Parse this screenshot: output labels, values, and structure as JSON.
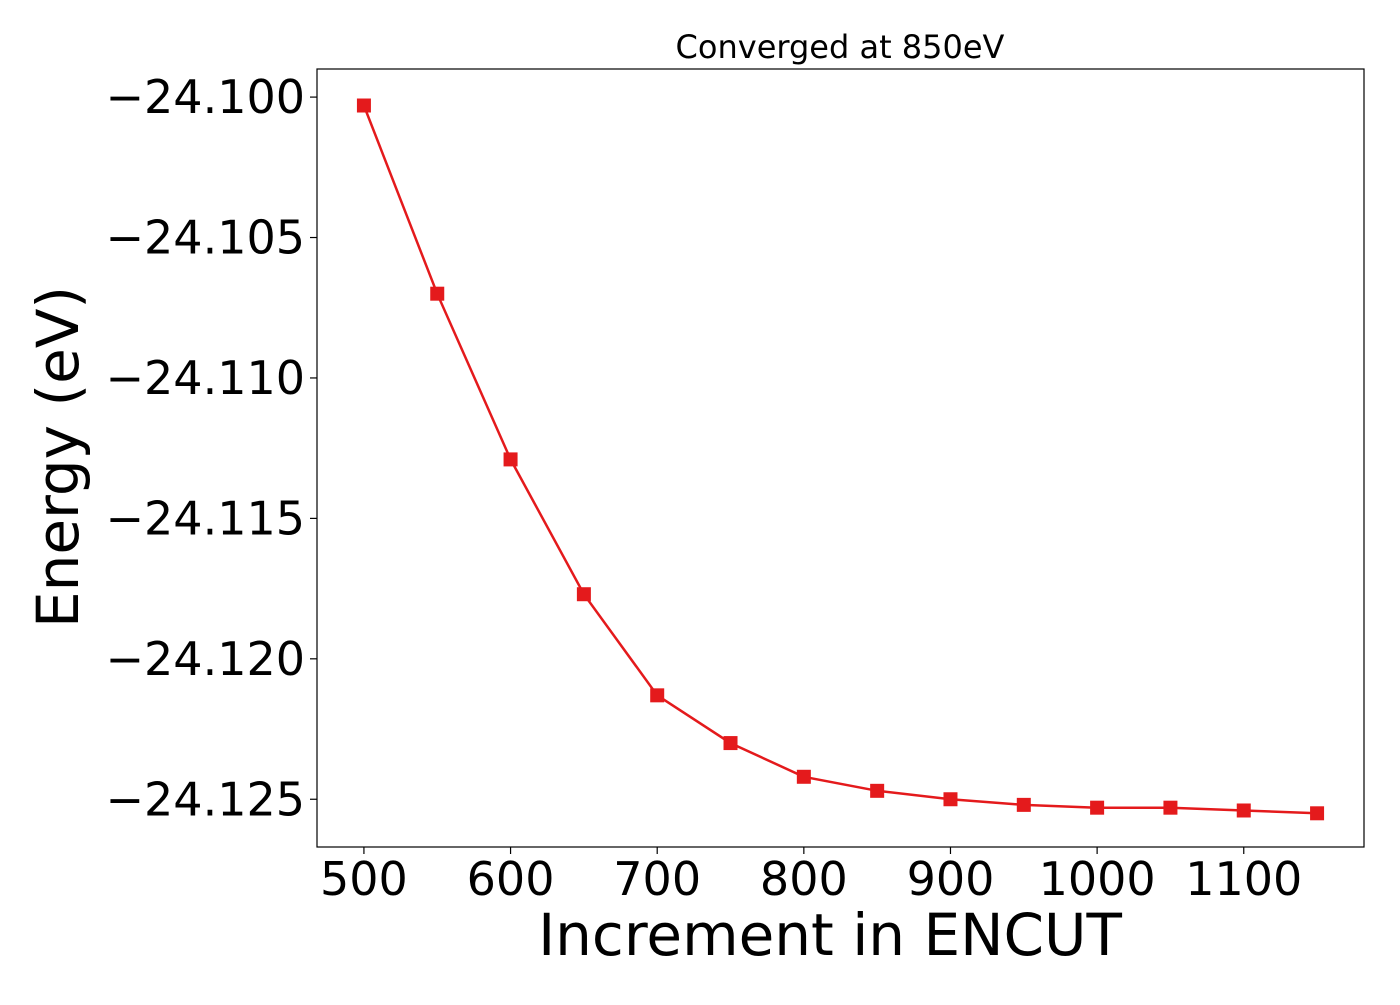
{
  "chart_data": {
    "type": "line",
    "title": "Converged at 850eV",
    "xlabel": "Increment in ENCUT",
    "ylabel": "Energy (eV)",
    "x": [
      500,
      550,
      600,
      650,
      700,
      750,
      800,
      850,
      900,
      950,
      1000,
      1050,
      1100,
      1150
    ],
    "series": [
      {
        "values": [
          -24.1003,
          -24.107,
          -24.1129,
          -24.1177,
          -24.1213,
          -24.123,
          -24.1242,
          -24.1247,
          -24.125,
          -24.1252,
          -24.1253,
          -24.1253,
          -24.1254,
          -24.1255
        ],
        "color": "#e41a1c",
        "marker": "square"
      }
    ],
    "xlim": [
      468,
      1182
    ],
    "ylim": [
      -24.1267,
      -24.099
    ],
    "xticks": [
      500,
      600,
      700,
      800,
      900,
      1000,
      1100
    ],
    "xtick_labels": [
      "500",
      "600",
      "700",
      "800",
      "900",
      "1000",
      "1100"
    ],
    "yticks": [
      -24.1,
      -24.105,
      -24.11,
      -24.115,
      -24.12,
      -24.125
    ],
    "ytick_labels": [
      "−24.100",
      "−24.105",
      "−24.110",
      "−24.115",
      "−24.120",
      "−24.125"
    ],
    "grid": false,
    "legend": "none"
  }
}
